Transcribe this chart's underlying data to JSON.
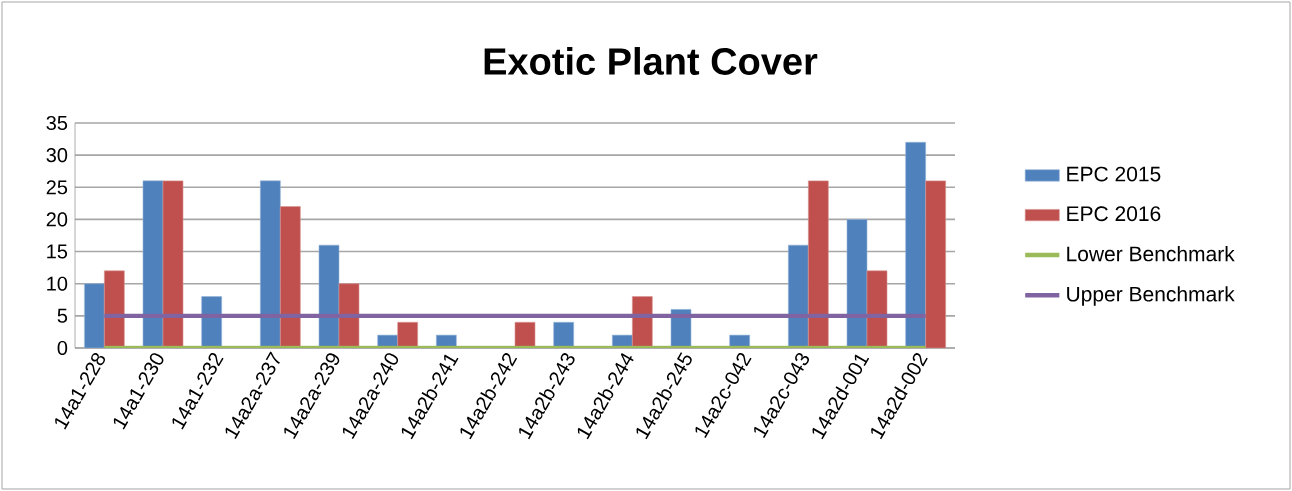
{
  "chart_data": {
    "type": "bar",
    "title": "Exotic Plant Cover",
    "categories": [
      "14a1-228",
      "14a1-230",
      "14a1-232",
      "14a2a-237",
      "14a2a-239",
      "14a2a-240",
      "14a2b-241",
      "14a2b-242",
      "14a2b-243",
      "14a2b-244",
      "14a2b-245",
      "14a2c-042",
      "14a2c-043",
      "14a2d-001",
      "14a2d-002"
    ],
    "series": [
      {
        "name": "EPC 2015",
        "color": "#4f81bd",
        "values": [
          10,
          26,
          8,
          26,
          16,
          2,
          2,
          0,
          4,
          2,
          6,
          2,
          16,
          20,
          32
        ]
      },
      {
        "name": "EPC 2016",
        "color": "#c0504d",
        "values": [
          12,
          26,
          0,
          22,
          10,
          4,
          0,
          4,
          0,
          8,
          0,
          0,
          26,
          12,
          26
        ]
      },
      {
        "name": "Lower Benchmark",
        "type": "line",
        "color": "#9bbb59",
        "values": [
          0,
          0,
          0,
          0,
          0,
          0,
          0,
          0,
          0,
          0,
          0,
          0,
          0,
          0,
          0
        ]
      },
      {
        "name": "Upper Benchmark",
        "type": "line",
        "color": "#8064a2",
        "values": [
          5,
          5,
          5,
          5,
          5,
          5,
          5,
          5,
          5,
          5,
          5,
          5,
          5,
          5,
          5
        ]
      }
    ],
    "ylim": [
      0,
      35
    ],
    "yticks": [
      0,
      5,
      10,
      15,
      20,
      25,
      30,
      35
    ],
    "grid": "y",
    "legend": "right",
    "marker": "none"
  }
}
